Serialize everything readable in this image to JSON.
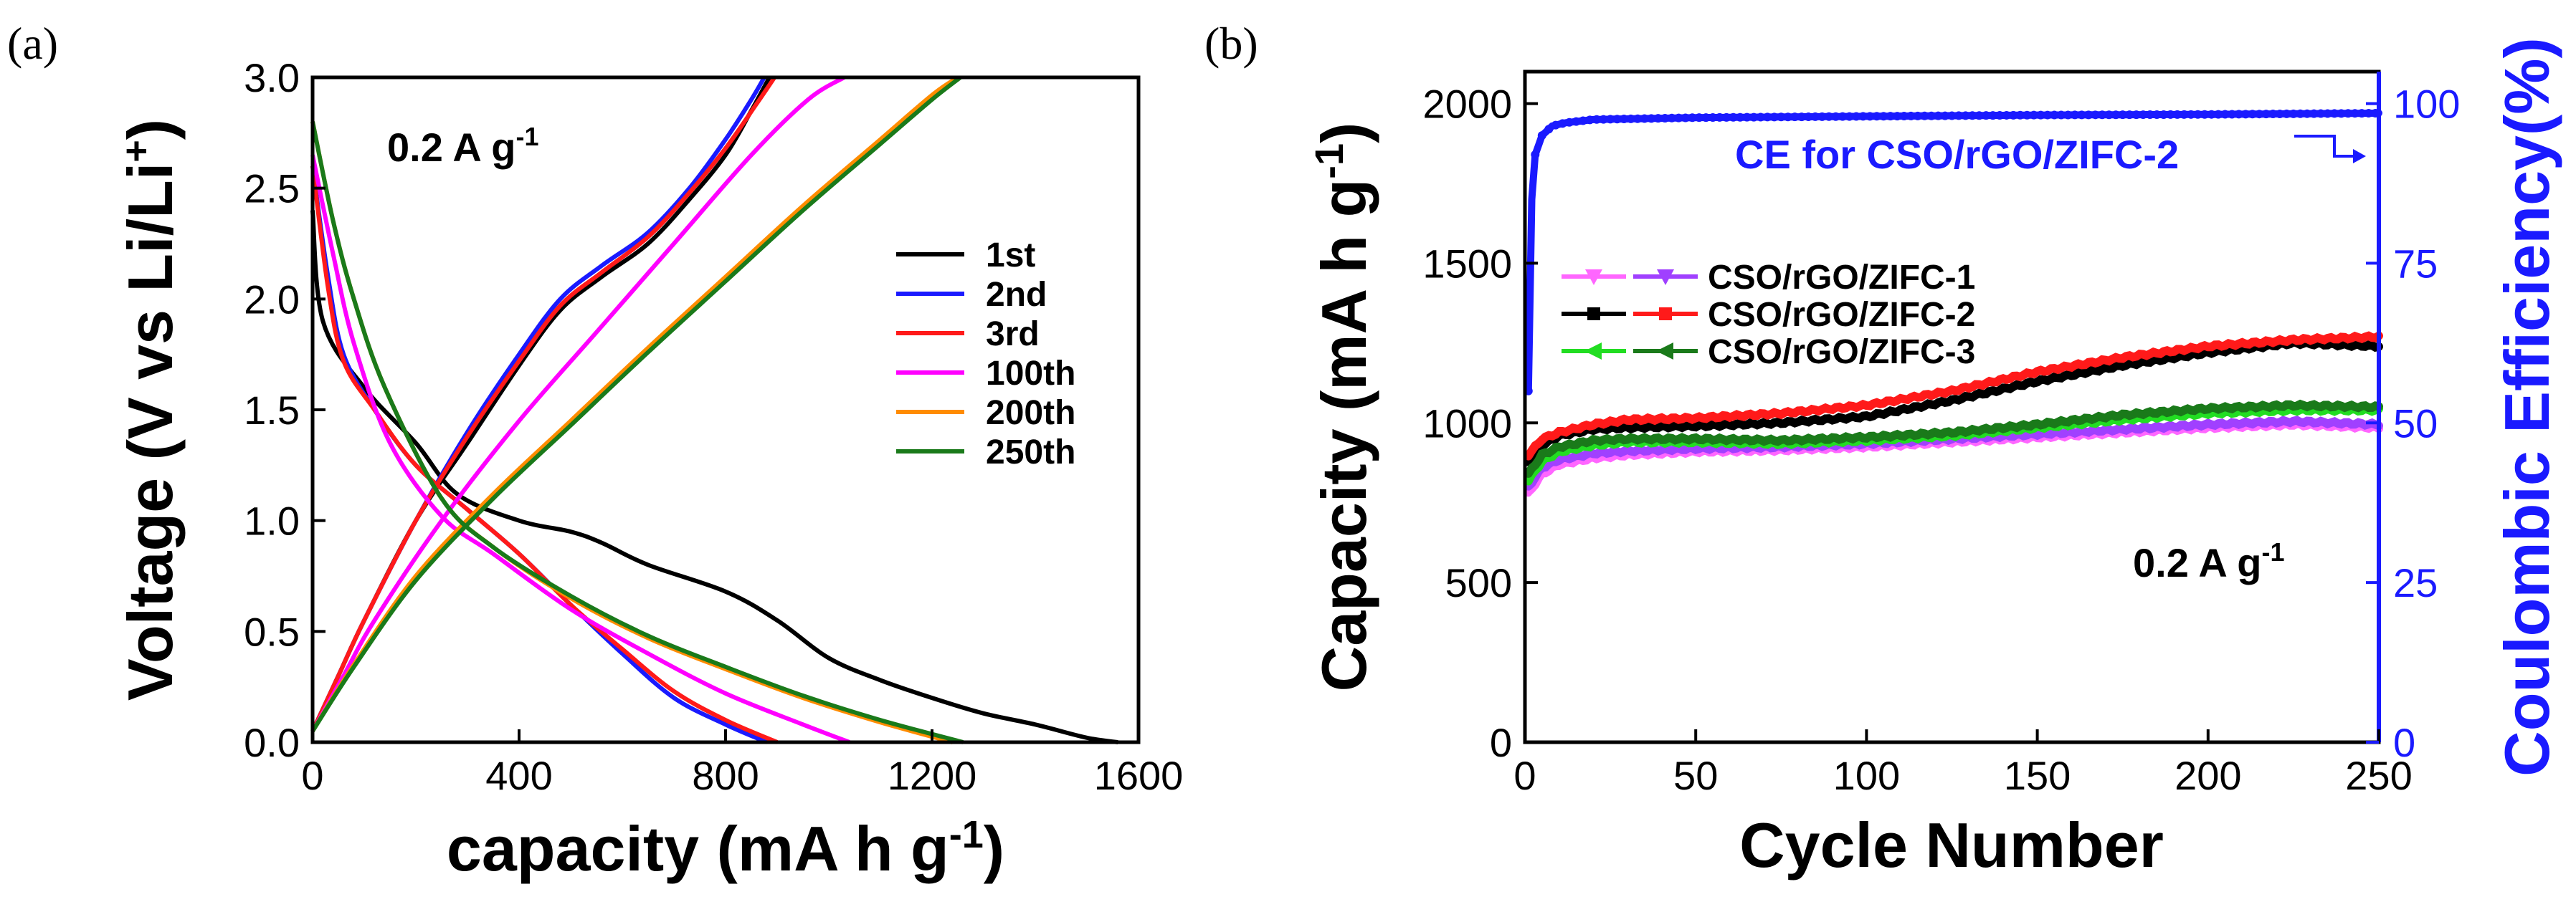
{
  "panels": {
    "a": {
      "label": "(a)",
      "chart_data": {
        "type": "line",
        "title": "",
        "xlabel": "capacity (mA h g",
        "xlabel_sup": "-1",
        "xlabel_tail": ")",
        "ylabel": "Voltage (V vs Li/Li",
        "ylabel_sup": "+",
        "ylabel_tail": ")",
        "xlim": [
          0,
          1600
        ],
        "ylim": [
          0,
          3.0
        ],
        "xticks": [
          0,
          400,
          800,
          1200,
          1600
        ],
        "yticks": [
          0.0,
          0.5,
          1.0,
          1.5,
          2.0,
          2.5,
          3.0
        ],
        "ytick_labels": [
          "0.0",
          "0.5",
          "1.0",
          "1.5",
          "2.0",
          "2.5",
          "3.0"
        ],
        "annotation": "0.2 A g",
        "annotation_sup": "-1",
        "series": [
          {
            "name": "1st",
            "color": "#000000",
            "discharge": [
              [
                0,
                2.4
              ],
              [
                20,
                1.9
              ],
              [
                100,
                1.6
              ],
              [
                200,
                1.35
              ],
              [
                280,
                1.12
              ],
              [
                400,
                1.0
              ],
              [
                500,
                0.95
              ],
              [
                560,
                0.9
              ],
              [
                650,
                0.8
              ],
              [
                800,
                0.68
              ],
              [
                900,
                0.55
              ],
              [
                1000,
                0.38
              ],
              [
                1100,
                0.28
              ],
              [
                1200,
                0.2
              ],
              [
                1300,
                0.13
              ],
              [
                1400,
                0.08
              ],
              [
                1500,
                0.02
              ],
              [
                1560,
                0.0
              ]
            ],
            "charge": [
              [
                0,
                0.05
              ],
              [
                50,
                0.3
              ],
              [
                100,
                0.55
              ],
              [
                200,
                1.0
              ],
              [
                300,
                1.35
              ],
              [
                400,
                1.7
              ],
              [
                480,
                1.95
              ],
              [
                560,
                2.1
              ],
              [
                650,
                2.25
              ],
              [
                730,
                2.45
              ],
              [
                800,
                2.65
              ],
              [
                850,
                2.85
              ],
              [
                885,
                3.0
              ]
            ]
          },
          {
            "name": "2nd",
            "color": "#1a1aff",
            "discharge": [
              [
                0,
                2.6
              ],
              [
                30,
                2.1
              ],
              [
                60,
                1.75
              ],
              [
                120,
                1.5
              ],
              [
                200,
                1.25
              ],
              [
                300,
                1.05
              ],
              [
                400,
                0.85
              ],
              [
                500,
                0.62
              ],
              [
                600,
                0.4
              ],
              [
                700,
                0.2
              ],
              [
                800,
                0.08
              ],
              [
                880,
                0.0
              ]
            ],
            "charge": [
              [
                0,
                0.05
              ],
              [
                50,
                0.3
              ],
              [
                100,
                0.55
              ],
              [
                200,
                1.0
              ],
              [
                300,
                1.4
              ],
              [
                400,
                1.75
              ],
              [
                480,
                2.0
              ],
              [
                560,
                2.15
              ],
              [
                650,
                2.3
              ],
              [
                730,
                2.5
              ],
              [
                800,
                2.72
              ],
              [
                850,
                2.9
              ],
              [
                875,
                3.0
              ]
            ]
          },
          {
            "name": "3rd",
            "color": "#ff1a1a",
            "discharge": [
              [
                0,
                2.6
              ],
              [
                30,
                2.05
              ],
              [
                60,
                1.72
              ],
              [
                120,
                1.5
              ],
              [
                200,
                1.25
              ],
              [
                300,
                1.05
              ],
              [
                400,
                0.85
              ],
              [
                500,
                0.62
              ],
              [
                600,
                0.42
              ],
              [
                700,
                0.23
              ],
              [
                800,
                0.1
              ],
              [
                900,
                0.0
              ]
            ],
            "charge": [
              [
                0,
                0.05
              ],
              [
                50,
                0.3
              ],
              [
                100,
                0.55
              ],
              [
                200,
                1.0
              ],
              [
                300,
                1.38
              ],
              [
                400,
                1.72
              ],
              [
                480,
                1.97
              ],
              [
                560,
                2.12
              ],
              [
                650,
                2.28
              ],
              [
                730,
                2.48
              ],
              [
                800,
                2.68
              ],
              [
                860,
                2.88
              ],
              [
                895,
                3.0
              ]
            ]
          },
          {
            "name": "100th",
            "color": "#ff00ff",
            "discharge": [
              [
                0,
                2.65
              ],
              [
                40,
                2.2
              ],
              [
                80,
                1.8
              ],
              [
                150,
                1.35
              ],
              [
                250,
                1.02
              ],
              [
                350,
                0.85
              ],
              [
                500,
                0.6
              ],
              [
                650,
                0.4
              ],
              [
                800,
                0.22
              ],
              [
                950,
                0.08
              ],
              [
                1040,
                0.0
              ]
            ],
            "charge": [
              [
                0,
                0.05
              ],
              [
                60,
                0.3
              ],
              [
                120,
                0.55
              ],
              [
                250,
                1.0
              ],
              [
                400,
                1.45
              ],
              [
                550,
                1.85
              ],
              [
                700,
                2.25
              ],
              [
                850,
                2.65
              ],
              [
                960,
                2.9
              ],
              [
                1030,
                3.0
              ]
            ]
          },
          {
            "name": "200th",
            "color": "#ff8c00",
            "discharge": [
              [
                0,
                2.8
              ],
              [
                40,
                2.35
              ],
              [
                80,
                2.0
              ],
              [
                140,
                1.6
              ],
              [
                250,
                1.1
              ],
              [
                350,
                0.88
              ],
              [
                500,
                0.65
              ],
              [
                650,
                0.47
              ],
              [
                800,
                0.33
              ],
              [
                950,
                0.2
              ],
              [
                1100,
                0.09
              ],
              [
                1240,
                0.0
              ]
            ],
            "charge": [
              [
                0,
                0.05
              ],
              [
                80,
                0.35
              ],
              [
                200,
                0.75
              ],
              [
                350,
                1.12
              ],
              [
                500,
                1.45
              ],
              [
                650,
                1.78
              ],
              [
                800,
                2.1
              ],
              [
                950,
                2.42
              ],
              [
                1100,
                2.72
              ],
              [
                1200,
                2.92
              ],
              [
                1250,
                3.0
              ]
            ]
          },
          {
            "name": "250th",
            "color": "#1a7a1a",
            "discharge": [
              [
                0,
                2.8
              ],
              [
                40,
                2.35
              ],
              [
                80,
                2.0
              ],
              [
                140,
                1.6
              ],
              [
                250,
                1.1
              ],
              [
                350,
                0.88
              ],
              [
                500,
                0.66
              ],
              [
                650,
                0.48
              ],
              [
                800,
                0.34
              ],
              [
                950,
                0.21
              ],
              [
                1100,
                0.1
              ],
              [
                1260,
                0.0
              ]
            ],
            "charge": [
              [
                0,
                0.05
              ],
              [
                80,
                0.34
              ],
              [
                200,
                0.73
              ],
              [
                350,
                1.1
              ],
              [
                500,
                1.43
              ],
              [
                650,
                1.76
              ],
              [
                800,
                2.08
              ],
              [
                950,
                2.4
              ],
              [
                1100,
                2.7
              ],
              [
                1200,
                2.9
              ],
              [
                1255,
                3.0
              ]
            ]
          }
        ]
      }
    },
    "b": {
      "label": "(b)",
      "chart_data": {
        "type": "scatter",
        "title": "",
        "xlabel": "Cycle Number",
        "ylabel": "Capacity (mA h g",
        "ylabel_sup": "-1",
        "ylabel_tail": ")",
        "y2label": "Coulombic Efficiency(%)",
        "xlim": [
          0,
          250
        ],
        "ylim": [
          0,
          2100
        ],
        "y2lim": [
          0,
          105
        ],
        "xticks": [
          0,
          50,
          100,
          150,
          200,
          250
        ],
        "yticks": [
          0,
          500,
          1000,
          1500,
          2000
        ],
        "y2ticks": [
          0,
          25,
          50,
          75,
          100
        ],
        "annotation": "0.2 A g",
        "annotation_sup": "-1",
        "ce_label": "CE for CSO/rGO/ZIFC-2",
        "legend": [
          {
            "name": "CSO/rGO/ZIFC-1",
            "colors": [
              "#ff66ff",
              "#a040ff"
            ]
          },
          {
            "name": "CSO/rGO/ZIFC-2",
            "colors": [
              "#000000",
              "#ff1a1a"
            ]
          },
          {
            "name": "CSO/rGO/ZIFC-3",
            "colors": [
              "#22dd22",
              "#1a7a1a"
            ]
          }
        ],
        "series": [
          {
            "name": "CSO/rGO/ZIFC-1 charge",
            "color": "#ff66ff",
            "cycles": [
              1,
              5,
              10,
              20,
              30,
              50,
              75,
              100,
              125,
              150,
              175,
              200,
              225,
              250
            ],
            "values": [
              780,
              840,
              870,
              890,
              900,
              910,
              915,
              925,
              940,
              955,
              970,
              985,
              995,
              985
            ]
          },
          {
            "name": "CSO/rGO/ZIFC-1 discharge",
            "color": "#a040ff",
            "cycles": [
              1,
              5,
              10,
              20,
              30,
              50,
              75,
              100,
              125,
              150,
              175,
              200,
              225,
              250
            ],
            "values": [
              800,
              860,
              885,
              905,
              912,
              920,
              925,
              935,
              950,
              965,
              980,
              995,
              1005,
              995
            ]
          },
          {
            "name": "CSO/rGO/ZIFC-2 charge",
            "color": "#000000",
            "cycles": [
              1,
              5,
              10,
              20,
              30,
              50,
              75,
              100,
              125,
              150,
              175,
              200,
              225,
              250
            ],
            "values": [
              880,
              930,
              960,
              980,
              985,
              990,
              1000,
              1020,
              1070,
              1130,
              1180,
              1220,
              1250,
              1240
            ]
          },
          {
            "name": "CSO/rGO/ZIFC-2 discharge",
            "color": "#ff1a1a",
            "cycles": [
              1,
              5,
              10,
              20,
              30,
              50,
              75,
              100,
              125,
              150,
              175,
              200,
              225,
              250
            ],
            "values": [
              900,
              950,
              970,
              995,
              1010,
              1015,
              1030,
              1055,
              1100,
              1160,
              1205,
              1240,
              1260,
              1270
            ]
          },
          {
            "name": "CSO/rGO/ZIFC-3 charge",
            "color": "#22dd22",
            "cycles": [
              1,
              5,
              10,
              20,
              30,
              50,
              75,
              100,
              125,
              150,
              175,
              200,
              225,
              250
            ],
            "values": [
              820,
              880,
              910,
              930,
              940,
              940,
              935,
              945,
              960,
              985,
              1010,
              1030,
              1040,
              1040
            ]
          },
          {
            "name": "CSO/rGO/ZIFC-3 discharge",
            "color": "#1a7a1a",
            "cycles": [
              1,
              5,
              10,
              20,
              30,
              50,
              75,
              100,
              125,
              150,
              175,
              200,
              225,
              250
            ],
            "values": [
              840,
              900,
              925,
              945,
              950,
              950,
              945,
              955,
              970,
              995,
              1025,
              1045,
              1055,
              1050
            ]
          },
          {
            "name": "CE for CSO/rGO/ZIFC-2",
            "color": "#1a1aff",
            "axis": "y2",
            "cycles": [
              1,
              2,
              3,
              5,
              8,
              12,
              20,
              50,
              100,
              150,
              200,
              250
            ],
            "values": [
              55,
              85,
              92,
              95,
              96.5,
              97,
              97.5,
              97.8,
              98,
              98.2,
              98.3,
              98.5
            ]
          }
        ]
      }
    }
  }
}
